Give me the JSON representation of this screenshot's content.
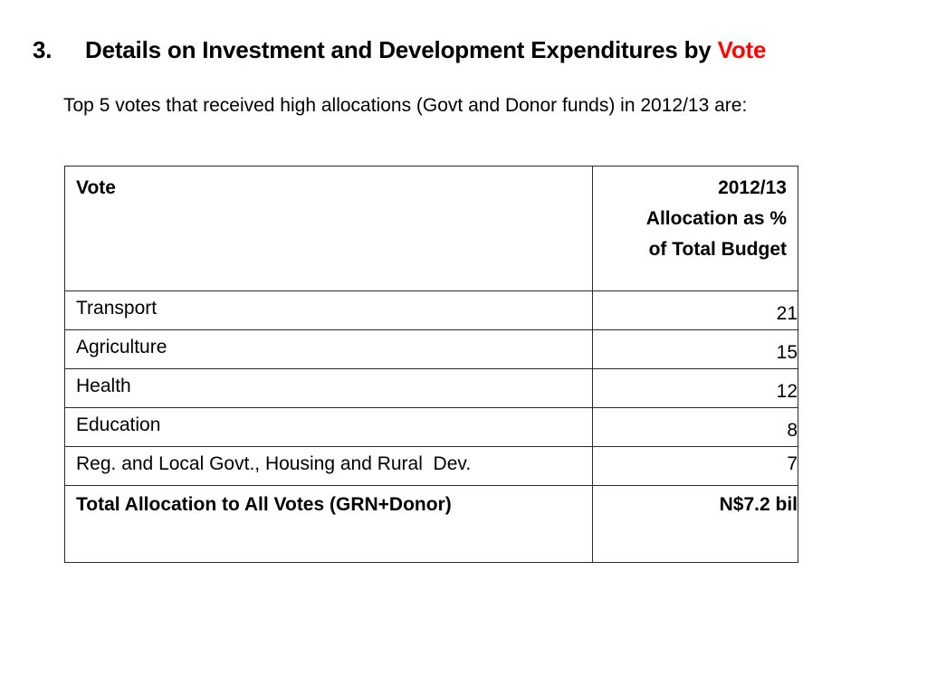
{
  "slide": {
    "number": "3.",
    "title_main": "Details on Investment and Development Expenditures by",
    "title_accent": "Vote",
    "intro": "Top 5 votes that received high allocations (Govt and Donor funds) in 2012/13 are:"
  },
  "table": {
    "header": {
      "vote": "Vote",
      "allocation_line1": "2012/13",
      "allocation_line2": "Allocation as %",
      "allocation_line3": "of Total Budget"
    },
    "rows": [
      {
        "vote": "Transport",
        "allocation": "21"
      },
      {
        "vote": "Agriculture",
        "allocation": "15"
      },
      {
        "vote": "Health",
        "allocation": "12"
      },
      {
        "vote": "Education",
        "allocation": "8"
      },
      {
        "vote": "Reg. and Local Govt., Housing and Rural  Dev.",
        "allocation": "7"
      }
    ],
    "total": {
      "label": "Total Allocation to All Votes (GRN+Donor)",
      "value": "N$7.2 bil"
    }
  },
  "colors": {
    "accent": "#ff0000",
    "text": "#000000",
    "border": "#2a2a2a"
  }
}
